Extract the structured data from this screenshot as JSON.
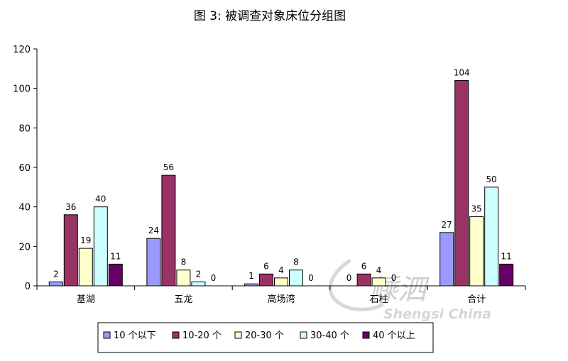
{
  "watermark": {
    "chinese": "嵊泗",
    "english": "Shengsi China"
  },
  "chart_data": {
    "type": "bar",
    "title": "图 3: 被调查对象床位分组图",
    "categories": [
      "基湖",
      "五龙",
      "高场湾",
      "石柱",
      "合计"
    ],
    "ylim": [
      0,
      120
    ],
    "yticks": [
      "0",
      "20",
      "40",
      "60",
      "80",
      "100",
      "120"
    ],
    "grid": false,
    "legend_position": "bottom",
    "series": [
      {
        "name": "10 个以下",
        "color": "#9999FF",
        "values": [
          2,
          24,
          1,
          0,
          27
        ]
      },
      {
        "name": "10-20 个",
        "color": "#993366",
        "values": [
          36,
          56,
          6,
          6,
          104
        ]
      },
      {
        "name": "20-30 个",
        "color": "#FFFFCC",
        "values": [
          19,
          8,
          4,
          4,
          35
        ]
      },
      {
        "name": "30-40 个",
        "color": "#CCFFFF",
        "values": [
          40,
          2,
          8,
          0,
          50
        ]
      },
      {
        "name": "40 个以上",
        "color": "#660066",
        "values": [
          11,
          0,
          0,
          null,
          11
        ]
      }
    ]
  }
}
